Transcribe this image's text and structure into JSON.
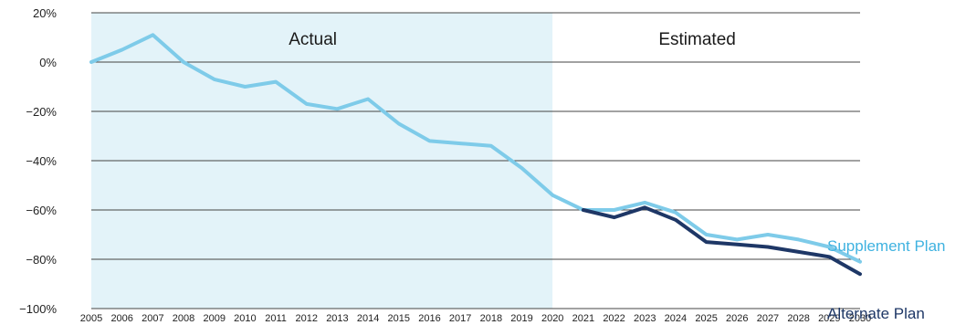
{
  "chart_data": {
    "type": "line",
    "title": "",
    "xlabel": "",
    "ylabel": "",
    "x": [
      2005,
      2006,
      2007,
      2008,
      2009,
      2010,
      2011,
      2012,
      2013,
      2014,
      2015,
      2016,
      2017,
      2018,
      2019,
      2020,
      2021,
      2022,
      2023,
      2024,
      2025,
      2026,
      2027,
      2028,
      2029,
      2030
    ],
    "x_tick_labels": [
      "2005",
      "2006",
      "2007",
      "2008",
      "2009",
      "2010",
      "2011",
      "2012",
      "2013",
      "2014",
      "2015",
      "2016",
      "2017",
      "2018",
      "2019",
      "2020",
      "2021",
      "2022",
      "2023",
      "2024",
      "2025",
      "2026",
      "2027",
      "2028",
      "2029",
      "2030"
    ],
    "ylim": [
      -100,
      20
    ],
    "y_ticks": [
      20,
      0,
      -20,
      -40,
      -60,
      -80,
      -100
    ],
    "y_tick_labels": [
      "20%",
      "0%",
      "−20%",
      "−40%",
      "−60%",
      "−80%",
      "−100%"
    ],
    "grid": "horizontal",
    "regions": [
      {
        "label": "Actual",
        "from": 2005,
        "to": 2020,
        "color": "#e3f3f9"
      },
      {
        "label": "Estimated",
        "from": 2020,
        "to": 2030,
        "color": "#ffffff"
      }
    ],
    "series": [
      {
        "name": "Supplement Plan",
        "color": "#7ecbe9",
        "label_color": "#3fb2e0",
        "x": [
          2005,
          2006,
          2007,
          2008,
          2009,
          2010,
          2011,
          2012,
          2013,
          2014,
          2015,
          2016,
          2017,
          2018,
          2019,
          2020,
          2021,
          2022,
          2023,
          2024,
          2025,
          2026,
          2027,
          2028,
          2029,
          2030
        ],
        "values": [
          0,
          5,
          11,
          0,
          -7,
          -10,
          -8,
          -17,
          -19,
          -15,
          -25,
          -32,
          -33,
          -34,
          -43,
          -54,
          -60,
          -60,
          -57,
          -61,
          -70,
          -72,
          -70,
          -72,
          -75,
          -81
        ]
      },
      {
        "name": "Alternate Plan",
        "color": "#1e3766",
        "label_color": "#1e3766",
        "x": [
          2021,
          2022,
          2023,
          2024,
          2025,
          2026,
          2027,
          2028,
          2029,
          2030
        ],
        "values": [
          -60,
          -63,
          -59,
          -64,
          -73,
          -74,
          -75,
          -77,
          -79,
          -86
        ]
      }
    ]
  }
}
